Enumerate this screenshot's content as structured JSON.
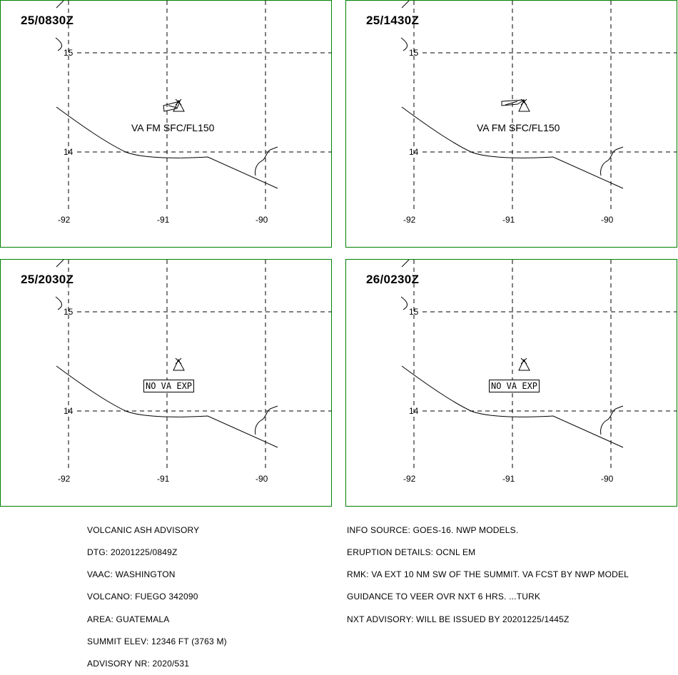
{
  "panels": [
    {
      "time": "25/0830Z",
      "label": "VA FM SFC/FL150",
      "type": "va"
    },
    {
      "time": "25/1430Z",
      "label": "VA FM SFC/FL150",
      "type": "va"
    },
    {
      "time": "25/2030Z",
      "label": "NO VA EXP",
      "type": "nova"
    },
    {
      "time": "26/0230Z",
      "label": "NO VA EXP",
      "type": "nova"
    }
  ],
  "grid": {
    "lat_labels": [
      "15",
      "14"
    ],
    "lon_labels": [
      "-92",
      "-91",
      "-90"
    ]
  },
  "left_info": [
    "VOLCANIC ASH ADVISORY",
    "DTG: 20201225/0849Z",
    "VAAC: WASHINGTON",
    "VOLCANO: FUEGO 342090",
    "AREA: GUATEMALA",
    "SUMMIT ELEV: 12346 FT (3763 M)",
    "ADVISORY NR: 2020/531"
  ],
  "right_info": [
    "INFO SOURCE: GOES-16. NWP MODELS.",
    "ERUPTION DETAILS: OCNL EM",
    "RMK: VA EXT 10 NM SW OF THE SUMMIT. VA FCST BY NWP MODEL",
    "GUIDANCE TO VEER OVR NXT 6 HRS. ...TURK",
    "NXT ADVISORY: WILL BE ISSUED BY 20201225/1445Z"
  ],
  "colors": {
    "panel_border": "#008000",
    "ink": "#000000"
  }
}
